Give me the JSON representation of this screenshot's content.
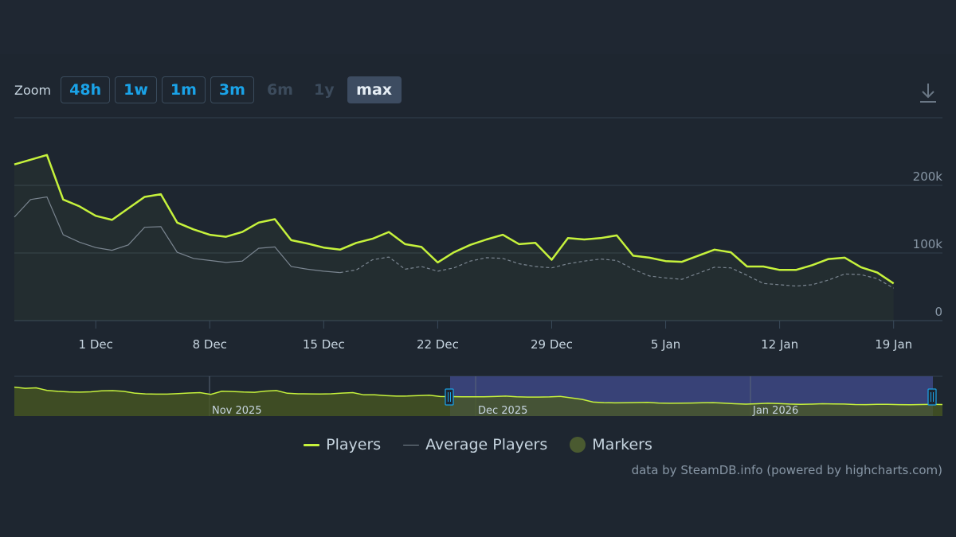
{
  "toolbar": {
    "zoom_label": "Zoom",
    "buttons": [
      {
        "label": "48h",
        "state": "enabled"
      },
      {
        "label": "1w",
        "state": "enabled"
      },
      {
        "label": "1m",
        "state": "enabled"
      },
      {
        "label": "3m",
        "state": "enabled"
      },
      {
        "label": "6m",
        "state": "disabled"
      },
      {
        "label": "1y",
        "state": "disabled"
      },
      {
        "label": "max",
        "state": "active"
      }
    ],
    "download_icon": "download-icon"
  },
  "colors": {
    "background": "#1e2630",
    "players": "#c6f23c",
    "average": "#7a8590",
    "markers": "#4a5a30",
    "navigator_window": "#3b4680",
    "zoom_active_bg": "#3d4c61",
    "zoom_text": "#1aa3e8"
  },
  "chart_data": {
    "type": "line",
    "x_axis": {
      "start": "2025-11-26",
      "end": "2026-01-22",
      "tick_labels": [
        "1 Dec",
        "8 Dec",
        "15 Dec",
        "22 Dec",
        "29 Dec",
        "5 Jan",
        "12 Jan",
        "19 Jan"
      ]
    },
    "y_axis": {
      "ylim": [
        0,
        300000
      ],
      "tick_labels": [
        "0",
        "100k",
        "200k"
      ],
      "tick_values": [
        0,
        100000,
        200000,
        300000
      ],
      "grid": true
    },
    "series": [
      {
        "name": "Players",
        "points": [
          [
            "2025-11-26",
            231000
          ],
          [
            "2025-11-28",
            245000
          ],
          [
            "2025-11-29",
            179000
          ],
          [
            "2025-11-30",
            169000
          ],
          [
            "2025-12-01",
            155000
          ],
          [
            "2025-12-02",
            149000
          ],
          [
            "2025-12-03",
            166000
          ],
          [
            "2025-12-04",
            183000
          ],
          [
            "2025-12-05",
            187000
          ],
          [
            "2025-12-06",
            145000
          ],
          [
            "2025-12-07",
            135000
          ],
          [
            "2025-12-08",
            127000
          ],
          [
            "2025-12-09",
            124000
          ],
          [
            "2025-12-10",
            131000
          ],
          [
            "2025-12-11",
            145000
          ],
          [
            "2025-12-12",
            150000
          ],
          [
            "2025-12-13",
            119000
          ],
          [
            "2025-12-14",
            114000
          ],
          [
            "2025-12-15",
            108000
          ],
          [
            "2025-12-16",
            105000
          ],
          [
            "2025-12-17",
            115000
          ],
          [
            "2025-12-18",
            121000
          ],
          [
            "2025-12-19",
            131000
          ],
          [
            "2025-12-20",
            113000
          ],
          [
            "2025-12-21",
            109000
          ],
          [
            "2025-12-22",
            86000
          ],
          [
            "2025-12-23",
            101000
          ],
          [
            "2025-12-24",
            112000
          ],
          [
            "2025-12-25",
            120000
          ],
          [
            "2025-12-26",
            127000
          ],
          [
            "2025-12-27",
            113000
          ],
          [
            "2025-12-28",
            115000
          ],
          [
            "2025-12-29",
            90000
          ],
          [
            "2025-12-30",
            122000
          ],
          [
            "2025-12-31",
            120000
          ],
          [
            "2026-01-01",
            122000
          ],
          [
            "2026-01-02",
            126000
          ],
          [
            "2026-01-03",
            96000
          ],
          [
            "2026-01-04",
            93000
          ],
          [
            "2026-01-05",
            88000
          ],
          [
            "2026-01-06",
            87000
          ],
          [
            "2026-01-07",
            96000
          ],
          [
            "2026-01-08",
            105000
          ],
          [
            "2026-01-09",
            101000
          ],
          [
            "2026-01-10",
            80000
          ],
          [
            "2026-01-11",
            80000
          ],
          [
            "2026-01-12",
            75000
          ],
          [
            "2026-01-13",
            75000
          ],
          [
            "2026-01-14",
            82000
          ],
          [
            "2026-01-15",
            91000
          ],
          [
            "2026-01-16",
            93000
          ],
          [
            "2026-01-17",
            79000
          ],
          [
            "2026-01-18",
            71000
          ],
          [
            "2026-01-19",
            55000
          ]
        ]
      },
      {
        "name": "Average Players",
        "points": [
          [
            "2025-11-26",
            153000
          ],
          [
            "2025-11-27",
            179000
          ],
          [
            "2025-11-28",
            183000
          ],
          [
            "2025-11-29",
            127000
          ],
          [
            "2025-11-30",
            116000
          ],
          [
            "2025-12-01",
            108000
          ],
          [
            "2025-12-02",
            104000
          ],
          [
            "2025-12-03",
            112000
          ],
          [
            "2025-12-04",
            138000
          ],
          [
            "2025-12-05",
            139000
          ],
          [
            "2025-12-06",
            101000
          ],
          [
            "2025-12-07",
            92000
          ],
          [
            "2025-12-08",
            89000
          ],
          [
            "2025-12-09",
            86000
          ],
          [
            "2025-12-10",
            88000
          ],
          [
            "2025-12-11",
            107000
          ],
          [
            "2025-12-12",
            109000
          ],
          [
            "2025-12-13",
            80000
          ],
          [
            "2025-12-14",
            76000
          ],
          [
            "2025-12-15",
            73000
          ],
          [
            "2025-12-16",
            71000
          ],
          [
            "2025-12-17",
            75000
          ],
          [
            "2025-12-18",
            90000
          ],
          [
            "2025-12-19",
            94000
          ],
          [
            "2025-12-20",
            76000
          ],
          [
            "2025-12-21",
            80000
          ],
          [
            "2025-12-22",
            73000
          ],
          [
            "2025-12-23",
            78000
          ],
          [
            "2025-12-24",
            88000
          ],
          [
            "2025-12-25",
            93000
          ],
          [
            "2025-12-26",
            92000
          ],
          [
            "2025-12-27",
            84000
          ],
          [
            "2025-12-28",
            80000
          ],
          [
            "2025-12-29",
            78000
          ],
          [
            "2025-12-30",
            84000
          ],
          [
            "2025-12-31",
            88000
          ],
          [
            "2026-01-01",
            91000
          ],
          [
            "2026-01-02",
            89000
          ],
          [
            "2026-01-03",
            76000
          ],
          [
            "2026-01-04",
            66000
          ],
          [
            "2026-01-05",
            63000
          ],
          [
            "2026-01-06",
            61000
          ],
          [
            "2026-01-07",
            70000
          ],
          [
            "2026-01-08",
            79000
          ],
          [
            "2026-01-09",
            78000
          ],
          [
            "2026-01-10",
            67000
          ],
          [
            "2026-01-11",
            55000
          ],
          [
            "2026-01-12",
            53000
          ],
          [
            "2026-01-13",
            51000
          ],
          [
            "2026-01-14",
            53000
          ],
          [
            "2026-01-15",
            60000
          ],
          [
            "2026-01-16",
            69000
          ],
          [
            "2026-01-17",
            68000
          ],
          [
            "2026-01-18",
            62000
          ],
          [
            "2026-01-19",
            48000
          ]
        ]
      }
    ],
    "legend": {
      "placement": "bottom-center",
      "entries": [
        {
          "name": "Players",
          "symbol": "line"
        },
        {
          "name": "Average Players",
          "symbol": "line"
        },
        {
          "name": "Markers",
          "symbol": "dot"
        }
      ]
    },
    "navigator": {
      "labels": [
        "Nov 2025",
        "Dec 2025",
        "Jan 2026"
      ],
      "values": [
        248000,
        238000,
        242000,
        220000,
        212000,
        207000,
        205000,
        208000,
        216000,
        218000,
        212000,
        197000,
        190000,
        188000,
        188000,
        193000,
        198000,
        201000,
        186000,
        213000,
        211000,
        206000,
        204000,
        214000,
        219000,
        196000,
        191000,
        190000,
        189000,
        191000,
        197000,
        201000,
        182000,
        182000,
        176000,
        171000,
        172000,
        176000,
        179000,
        168000,
        167000,
        165000,
        166000,
        166000,
        168000,
        171000,
        166000,
        163000,
        163000,
        164000,
        169000,
        156000,
        143000,
        120000,
        115000,
        113000,
        114000,
        116000,
        117000,
        112000,
        110000,
        111000,
        112000,
        114000,
        115000,
        111000,
        106000,
        102000,
        106000,
        110000,
        108000,
        103000,
        101000,
        102000,
        106000,
        104000,
        103000,
        99000,
        98000,
        100000,
        101000,
        98000,
        97000,
        99000,
        100000,
        99000
      ],
      "selected_range": [
        "2025-11-26",
        "2026-01-19"
      ]
    }
  },
  "credits": "data by SteamDB.info (powered by highcharts.com)"
}
